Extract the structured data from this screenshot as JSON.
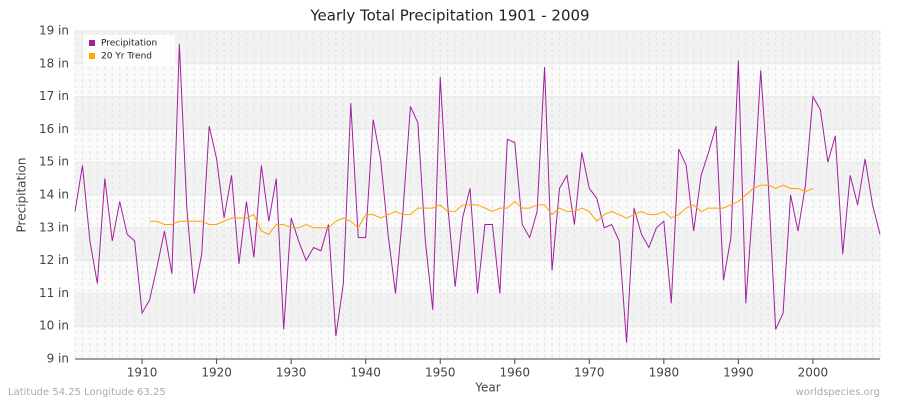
{
  "chart_data": {
    "type": "line",
    "title": "Yearly Total Precipitation 1901 - 2009",
    "x_label": "Year",
    "y_label": "Precipitation",
    "footer_left": "Latitude 54.25 Longitude 63.25",
    "footer_right": "worldspecies.org",
    "x": [
      1901,
      1902,
      1903,
      1904,
      1905,
      1906,
      1907,
      1908,
      1909,
      1910,
      1911,
      1912,
      1913,
      1914,
      1915,
      1916,
      1917,
      1918,
      1919,
      1920,
      1921,
      1922,
      1923,
      1924,
      1925,
      1926,
      1927,
      1928,
      1929,
      1930,
      1931,
      1932,
      1933,
      1934,
      1935,
      1936,
      1937,
      1938,
      1939,
      1940,
      1941,
      1942,
      1943,
      1944,
      1945,
      1946,
      1947,
      1948,
      1949,
      1950,
      1951,
      1952,
      1953,
      1954,
      1955,
      1956,
      1957,
      1958,
      1959,
      1960,
      1961,
      1962,
      1963,
      1964,
      1965,
      1966,
      1967,
      1968,
      1969,
      1970,
      1971,
      1972,
      1973,
      1974,
      1975,
      1976,
      1977,
      1978,
      1979,
      1980,
      1981,
      1982,
      1983,
      1984,
      1985,
      1986,
      1987,
      1988,
      1989,
      1990,
      1991,
      1992,
      1993,
      1994,
      1995,
      1996,
      1997,
      1998,
      1999,
      2000,
      2001,
      2002,
      2003,
      2004,
      2005,
      2006,
      2007,
      2008,
      2009
    ],
    "series": [
      {
        "name": "Precipitation",
        "color": "#a020a0",
        "values": [
          13.5,
          14.9,
          12.6,
          11.3,
          14.5,
          12.6,
          13.8,
          12.8,
          12.6,
          10.4,
          10.8,
          11.8,
          12.9,
          11.6,
          18.6,
          13.6,
          11.0,
          12.2,
          16.1,
          15.1,
          13.3,
          14.6,
          11.9,
          13.8,
          12.1,
          14.9,
          13.2,
          14.5,
          9.9,
          13.3,
          12.6,
          12.0,
          12.4,
          12.3,
          13.1,
          9.7,
          11.3,
          16.8,
          12.7,
          12.7,
          16.3,
          15.1,
          12.8,
          11.0,
          13.5,
          16.7,
          16.2,
          12.6,
          10.5,
          17.6,
          13.7,
          11.2,
          13.3,
          14.2,
          11.0,
          13.1,
          13.1,
          11.0,
          15.7,
          15.6,
          13.1,
          12.7,
          13.5,
          17.9,
          11.7,
          14.2,
          14.6,
          13.1,
          15.3,
          14.2,
          13.9,
          13.0,
          13.1,
          12.6,
          9.5,
          13.6,
          12.8,
          12.4,
          13.0,
          13.2,
          10.7,
          15.4,
          14.9,
          12.9,
          14.6,
          15.3,
          16.1,
          11.4,
          12.7,
          18.1,
          10.7,
          13.9,
          17.8,
          14.4,
          9.9,
          10.4,
          14.0,
          12.9,
          14.3,
          17.0,
          16.6,
          15.0,
          15.8,
          12.2,
          14.6,
          13.7,
          15.1,
          13.7,
          12.8
        ]
      },
      {
        "name": "20 Yr Trend",
        "color": "#ffa500",
        "values": [
          null,
          null,
          null,
          null,
          null,
          null,
          null,
          null,
          null,
          null,
          13.2,
          13.2,
          13.1,
          13.1,
          13.2,
          13.2,
          13.2,
          13.2,
          13.1,
          13.1,
          13.2,
          13.3,
          13.3,
          13.3,
          13.4,
          12.9,
          12.8,
          13.1,
          13.1,
          13.0,
          13.0,
          13.1,
          13.0,
          13.0,
          13.0,
          13.2,
          13.3,
          13.2,
          13.0,
          13.4,
          13.4,
          13.3,
          13.4,
          13.5,
          13.4,
          13.4,
          13.6,
          13.6,
          13.6,
          13.7,
          13.5,
          13.5,
          13.7,
          13.7,
          13.7,
          13.6,
          13.5,
          13.6,
          13.6,
          13.8,
          13.6,
          13.6,
          13.7,
          13.7,
          13.4,
          13.6,
          13.5,
          13.5,
          13.6,
          13.5,
          13.2,
          13.4,
          13.5,
          13.4,
          13.3,
          13.4,
          13.5,
          13.4,
          13.4,
          13.5,
          13.3,
          13.4,
          13.6,
          13.7,
          13.5,
          13.6,
          13.6,
          13.6,
          13.7,
          13.8,
          14.0,
          14.2,
          14.3,
          14.3,
          14.2,
          14.3,
          14.2,
          14.2,
          14.1,
          14.2,
          null,
          null,
          null,
          null,
          null,
          null,
          null,
          null,
          null
        ]
      }
    ],
    "xlim": [
      1901,
      2009
    ],
    "xticks": [
      1910,
      1920,
      1930,
      1940,
      1950,
      1960,
      1970,
      1980,
      1990,
      2000
    ],
    "ylim": [
      9,
      19
    ],
    "yticks": [
      {
        "value": 9,
        "label": "9 in"
      },
      {
        "value": 10,
        "label": "10 in"
      },
      {
        "value": 11,
        "label": "11 in"
      },
      {
        "value": 12,
        "label": "12 in"
      },
      {
        "value": 13,
        "label": "13 in"
      },
      {
        "value": 14,
        "label": "14 in"
      },
      {
        "value": 15,
        "label": "15 in"
      },
      {
        "value": 16,
        "label": "16 in"
      },
      {
        "value": 17,
        "label": "17 in"
      },
      {
        "value": 18,
        "label": "18 in"
      },
      {
        "value": 19,
        "label": "19 in"
      }
    ],
    "grid": true,
    "legend": "top-left"
  }
}
